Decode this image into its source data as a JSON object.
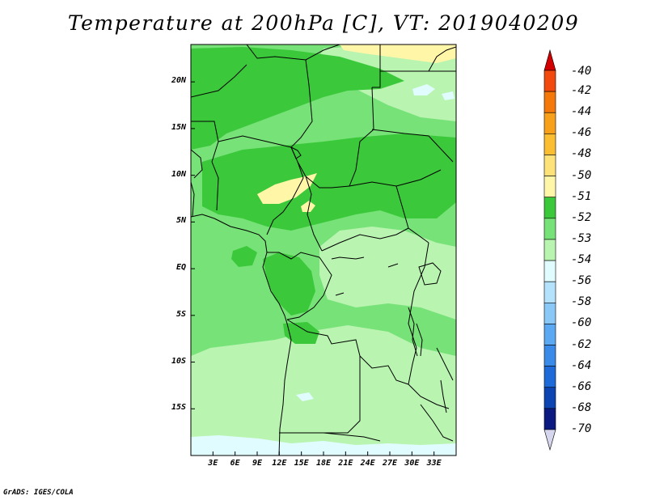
{
  "title": "Temperature at 200hPa [C], VT: 2019040209",
  "credit": "GrADS: IGES/COLA",
  "map": {
    "region": "Central Africa",
    "lon_range": [
      0,
      36
    ],
    "lat_range": [
      -20,
      24
    ],
    "lat_ticks": [
      {
        "value": 20,
        "label": "20N"
      },
      {
        "value": 15,
        "label": "15N"
      },
      {
        "value": 10,
        "label": "10N"
      },
      {
        "value": 5,
        "label": "5N"
      },
      {
        "value": 0,
        "label": "EQ"
      },
      {
        "value": -5,
        "label": "5S"
      },
      {
        "value": -10,
        "label": "10S"
      },
      {
        "value": -15,
        "label": "15S"
      }
    ],
    "lon_ticks": [
      {
        "value": 3,
        "label": "3E"
      },
      {
        "value": 6,
        "label": "6E"
      },
      {
        "value": 9,
        "label": "9E"
      },
      {
        "value": 12,
        "label": "12E"
      },
      {
        "value": 15,
        "label": "15E"
      },
      {
        "value": 18,
        "label": "18E"
      },
      {
        "value": 21,
        "label": "21E"
      },
      {
        "value": 24,
        "label": "24E"
      },
      {
        "value": 27,
        "label": "27E"
      },
      {
        "value": 30,
        "label": "30E"
      },
      {
        "value": 33,
        "label": "33E"
      }
    ],
    "colors": {
      "c51_50": "#fff6a8",
      "c52_51": "#3bc93b",
      "c53_52": "#77e277",
      "c54_53": "#b9f4b1",
      "c56_54": "#e0fcff",
      "border": "#000000"
    }
  },
  "colorbar": {
    "levels": [
      {
        "label": "-40",
        "color": "#f0220e"
      },
      {
        "label": "-42",
        "color": "#f24a0e"
      },
      {
        "label": "-44",
        "color": "#f5780a"
      },
      {
        "label": "-46",
        "color": "#f9a01a"
      },
      {
        "label": "-48",
        "color": "#fbbd32"
      },
      {
        "label": "-50",
        "color": "#fde27a"
      },
      {
        "label": "-51",
        "color": "#fff6a8"
      },
      {
        "label": "-52",
        "color": "#3bc93b"
      },
      {
        "label": "-53",
        "color": "#77e277"
      },
      {
        "label": "-54",
        "color": "#b9f4b1"
      },
      {
        "label": "-56",
        "color": "#e0fcff"
      },
      {
        "label": "-58",
        "color": "#b4e2fc"
      },
      {
        "label": "-60",
        "color": "#8ac8f8"
      },
      {
        "label": "-62",
        "color": "#5aa9f2"
      },
      {
        "label": "-64",
        "color": "#3a8ae9"
      },
      {
        "label": "-66",
        "color": "#1e6ad8"
      },
      {
        "label": "-68",
        "color": "#0d44b4"
      },
      {
        "label": "-70",
        "color": "#0a1a80"
      }
    ],
    "top_cap_color": "#d20000",
    "bottom_cap_color": "#d6d6ee"
  }
}
